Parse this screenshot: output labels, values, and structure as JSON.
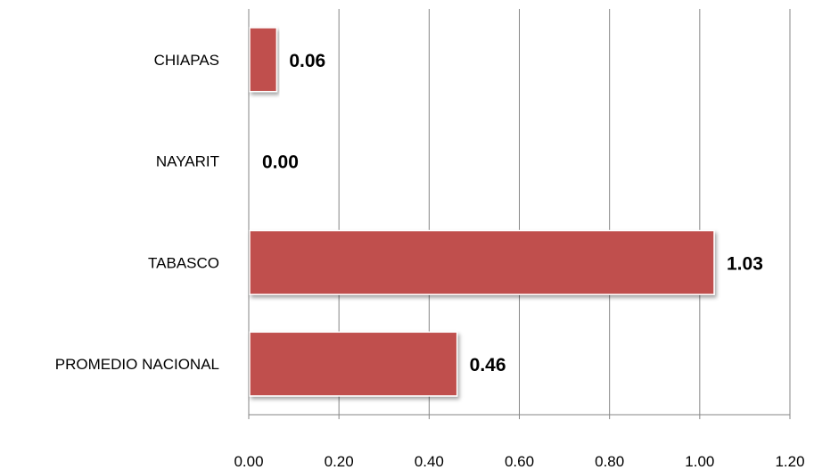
{
  "chart_data": {
    "type": "bar",
    "orientation": "horizontal",
    "categories": [
      "CHIAPAS",
      "NAYARIT",
      "TABASCO",
      "PROMEDIO NACIONAL"
    ],
    "values": [
      0.06,
      0.0,
      1.03,
      0.46
    ],
    "data_labels": [
      "0.06",
      "0.00",
      "1.03",
      "0.46"
    ],
    "xlim": [
      0,
      1.2
    ],
    "x_ticks": [
      0,
      0.2,
      0.4,
      0.6,
      0.8,
      1.0,
      1.2
    ],
    "x_tick_labels": [
      "0.00",
      "0.20",
      "0.40",
      "0.60",
      "0.80",
      "1.00",
      "1.20"
    ],
    "grid": "vertical",
    "legend": "none",
    "bar_color": "#c0504d"
  }
}
